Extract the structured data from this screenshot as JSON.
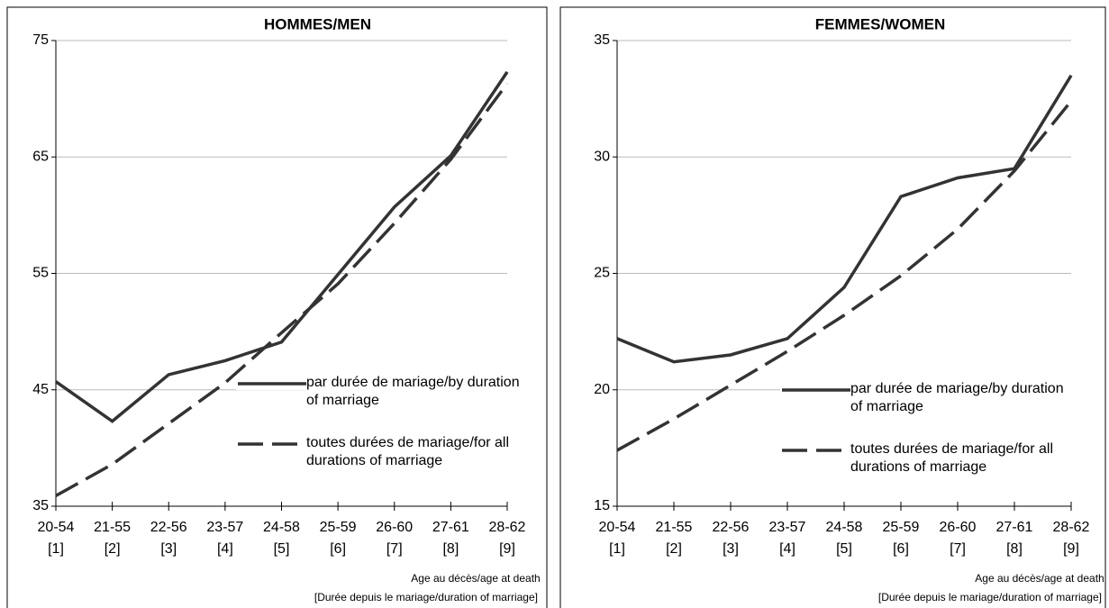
{
  "chart_data": [
    {
      "type": "line",
      "title": "HOMMES/MEN",
      "categories": [
        [
          "20-54",
          "[1]"
        ],
        [
          "21-55",
          "[2]"
        ],
        [
          "22-56",
          "[3]"
        ],
        [
          "23-57",
          "[4]"
        ],
        [
          "24-58",
          "[5]"
        ],
        [
          "25-59",
          "[6]"
        ],
        [
          "26-60",
          "[7]"
        ],
        [
          "27-61",
          "[8]"
        ],
        [
          "28-62",
          "[9]"
        ]
      ],
      "x_label": [
        "Age au décès/age at death",
        "[Durée depuis le mariage/duration of marriage]"
      ],
      "ylim": [
        35,
        75
      ],
      "yticks": [
        35,
        45,
        55,
        65,
        75
      ],
      "grid": true,
      "legend": "lower right",
      "series": [
        {
          "name": "par durée de mariage/by duration of marriage",
          "color": "#333333",
          "style": "solid",
          "values": [
            45.7,
            42.3,
            46.3,
            47.5,
            49.1,
            54.9,
            60.7,
            65.1,
            72.3
          ]
        },
        {
          "name": "toutes durées de mariage/for all durations of marriage",
          "color": "#333333",
          "style": "dashed",
          "values": [
            35.9,
            38.6,
            42.1,
            45.6,
            49.9,
            54.1,
            59.3,
            64.8,
            71.3
          ]
        }
      ]
    },
    {
      "type": "line",
      "title": "FEMMES/WOMEN",
      "categories": [
        [
          "20-54",
          "[1]"
        ],
        [
          "21-55",
          "[2]"
        ],
        [
          "22-56",
          "[3]"
        ],
        [
          "23-57",
          "[4]"
        ],
        [
          "24-58",
          "[5]"
        ],
        [
          "25-59",
          "[6]"
        ],
        [
          "26-60",
          "[7]"
        ],
        [
          "27-61",
          "[8]"
        ],
        [
          "28-62",
          "[9]"
        ]
      ],
      "x_label": [
        "Age au décès/age at death",
        "[Durée depuis le mariage/duration of marriage]"
      ],
      "ylim": [
        15,
        35
      ],
      "yticks": [
        15,
        20,
        25,
        30,
        35
      ],
      "grid": true,
      "legend": "lower right",
      "series": [
        {
          "name": "par durée de mariage/by duration of marriage",
          "color": "#333333",
          "style": "solid",
          "values": [
            22.2,
            21.2,
            21.5,
            22.2,
            24.4,
            28.3,
            29.1,
            29.5,
            33.5
          ]
        },
        {
          "name": "toutes durées de mariage/for all durations of marriage",
          "color": "#333333",
          "style": "dashed",
          "values": [
            17.4,
            18.75,
            20.2,
            21.65,
            23.2,
            24.9,
            26.9,
            29.4,
            32.4
          ]
        }
      ]
    }
  ]
}
